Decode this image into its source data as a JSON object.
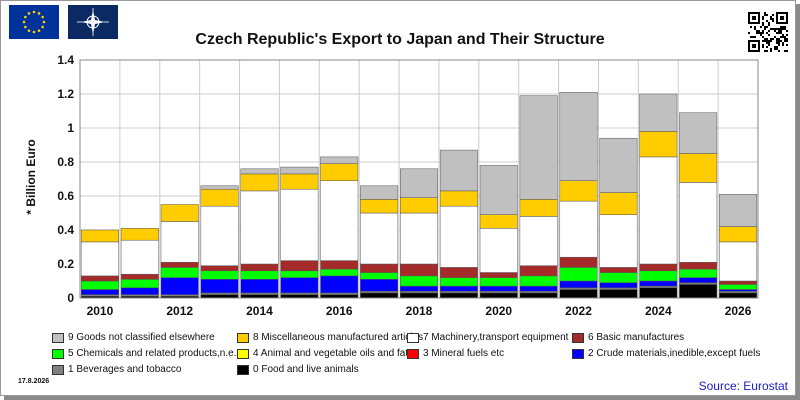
{
  "title": "Czech Republic's Export to Japan and Their Structure",
  "date": "17.8.2026",
  "source": "Source: Eurostat",
  "icons": {
    "eu_flag": "eu-flag-icon",
    "nato_flag": "nato-flag-icon",
    "qr": "qr-code-icon"
  },
  "chart_data": {
    "type": "bar",
    "stacked": true,
    "title": "Czech Republic's Export to Japan and Their Structure",
    "ylabel": "* Billion Euro",
    "xlabel": "",
    "ylim": [
      0,
      1.4
    ],
    "yticks": [
      "0",
      "0.2",
      "0.4",
      "0.6",
      "0.8",
      "1",
      "1.2",
      "1.4"
    ],
    "grid": true,
    "legend_position": "bottom",
    "categories": [
      "2010",
      "2011",
      "2012",
      "2013",
      "2014",
      "2015",
      "2016",
      "2017",
      "2018",
      "2019",
      "2020",
      "2021",
      "2022",
      "2023",
      "2024",
      "2025",
      "2026"
    ],
    "xtick_labels": [
      "2010",
      "",
      "2012",
      "",
      "2014",
      "",
      "2016",
      "",
      "2018",
      "",
      "2020",
      "",
      "2022",
      "",
      "2024",
      "",
      "2026"
    ],
    "series": [
      {
        "name": "0 Food and live animals",
        "color": "#000000",
        "values": [
          0.01,
          0.01,
          0.01,
          0.02,
          0.02,
          0.02,
          0.02,
          0.03,
          0.03,
          0.03,
          0.03,
          0.03,
          0.05,
          0.05,
          0.06,
          0.08,
          0.03
        ]
      },
      {
        "name": "1 Beverages and tobacco",
        "color": "#808080",
        "values": [
          0.01,
          0.01,
          0.01,
          0.01,
          0.01,
          0.01,
          0.01,
          0.01,
          0.01,
          0.01,
          0.01,
          0.01,
          0.01,
          0.01,
          0.01,
          0.01,
          0.01
        ]
      },
      {
        "name": "2 Crude materials,inedible,except fuels",
        "color": "#0000ff",
        "values": [
          0.03,
          0.04,
          0.1,
          0.08,
          0.08,
          0.09,
          0.1,
          0.07,
          0.03,
          0.03,
          0.03,
          0.03,
          0.04,
          0.03,
          0.03,
          0.03,
          0.01
        ]
      },
      {
        "name": "3 Mineral fuels etc",
        "color": "#ff0000",
        "values": [
          0.0,
          0.0,
          0.0,
          0.0,
          0.0,
          0.0,
          0.0,
          0.0,
          0.0,
          0.0,
          0.0,
          0.0,
          0.0,
          0.0,
          0.0,
          0.0,
          0.0
        ]
      },
      {
        "name": "4 Animal and vegetable oils and fats",
        "color": "#ffff00",
        "values": [
          0.0,
          0.0,
          0.0,
          0.0,
          0.0,
          0.0,
          0.0,
          0.0,
          0.0,
          0.0,
          0.0,
          0.0,
          0.0,
          0.0,
          0.0,
          0.0,
          0.0
        ]
      },
      {
        "name": "5 Chemicals and related products,n.e.s.",
        "color": "#00ff00",
        "values": [
          0.05,
          0.05,
          0.06,
          0.05,
          0.05,
          0.04,
          0.04,
          0.04,
          0.06,
          0.05,
          0.05,
          0.06,
          0.08,
          0.06,
          0.06,
          0.05,
          0.03
        ]
      },
      {
        "name": "6 Basic manufactures",
        "color": "#a52a2a",
        "values": [
          0.03,
          0.03,
          0.03,
          0.03,
          0.04,
          0.06,
          0.05,
          0.05,
          0.07,
          0.06,
          0.03,
          0.06,
          0.06,
          0.03,
          0.04,
          0.04,
          0.02
        ]
      },
      {
        "name": "7 Machinery,transport equipment",
        "color": "#ffffff",
        "values": [
          0.2,
          0.2,
          0.24,
          0.35,
          0.43,
          0.42,
          0.47,
          0.3,
          0.3,
          0.36,
          0.26,
          0.29,
          0.33,
          0.31,
          0.63,
          0.47,
          0.23
        ]
      },
      {
        "name": "8 Miscellaneous manufactured articles",
        "color": "#ffcc00",
        "values": [
          0.07,
          0.07,
          0.1,
          0.1,
          0.1,
          0.09,
          0.1,
          0.08,
          0.09,
          0.09,
          0.08,
          0.1,
          0.12,
          0.13,
          0.15,
          0.17,
          0.09
        ]
      },
      {
        "name": "9 Goods not classified elsewhere",
        "color": "#c0c0c0",
        "values": [
          0.0,
          0.0,
          0.0,
          0.02,
          0.03,
          0.04,
          0.04,
          0.08,
          0.17,
          0.24,
          0.29,
          0.61,
          0.52,
          0.32,
          0.22,
          0.24,
          0.19
        ]
      }
    ]
  }
}
